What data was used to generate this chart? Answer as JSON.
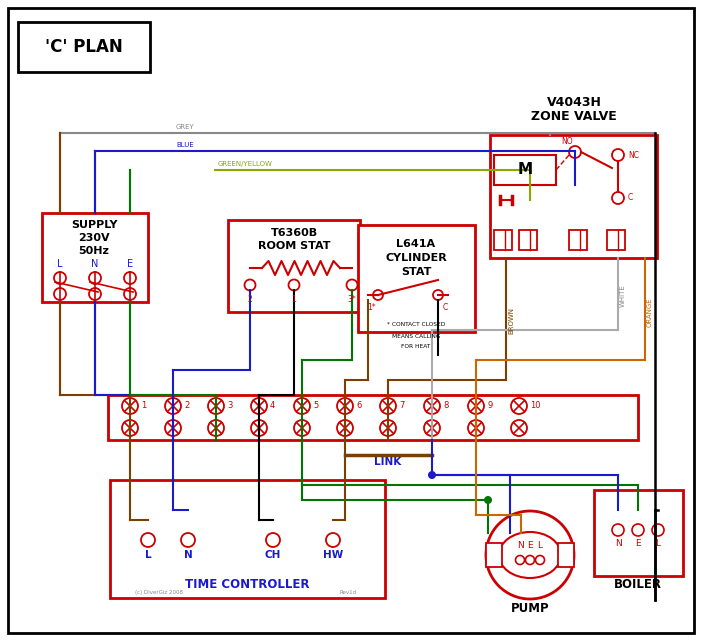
{
  "bg": "#ffffff",
  "black": "#000000",
  "red": "#cc0000",
  "blue": "#1a1acc",
  "green": "#007700",
  "brown": "#7b3f00",
  "grey": "#888888",
  "orange": "#cc6600",
  "gy_wire": "#888888",
  "green_yellow": "#88aa00",
  "white_wire": "#aaaaaa",
  "title": "'C' PLAN",
  "zone_valve_lbl": [
    "V4043H",
    "ZONE VALVE"
  ],
  "room_stat_lbl": [
    "T6360B",
    "ROOM STAT"
  ],
  "cyl_stat_lbl": [
    "L641A",
    "CYLINDER",
    "STAT"
  ],
  "tc_lbl": "TIME CONTROLLER",
  "pump_lbl": "PUMP",
  "boiler_lbl": "BOILER",
  "supply_lbl": [
    "SUPPLY",
    "230V",
    "50Hz"
  ],
  "terminal_nums": [
    "1",
    "2",
    "3",
    "4",
    "5",
    "6",
    "7",
    "8",
    "9",
    "10"
  ],
  "link_lbl": "LINK",
  "grey_lbl": "GREY",
  "blue_lbl": "BLUE",
  "gy_lbl": "GREEN/YELLOW",
  "brown_lbl": "BROWN",
  "white_lbl": "WHITE",
  "orange_lbl": "ORANGE",
  "copyright": "(c) DiverGiz 2008",
  "rev": "Rev1d"
}
